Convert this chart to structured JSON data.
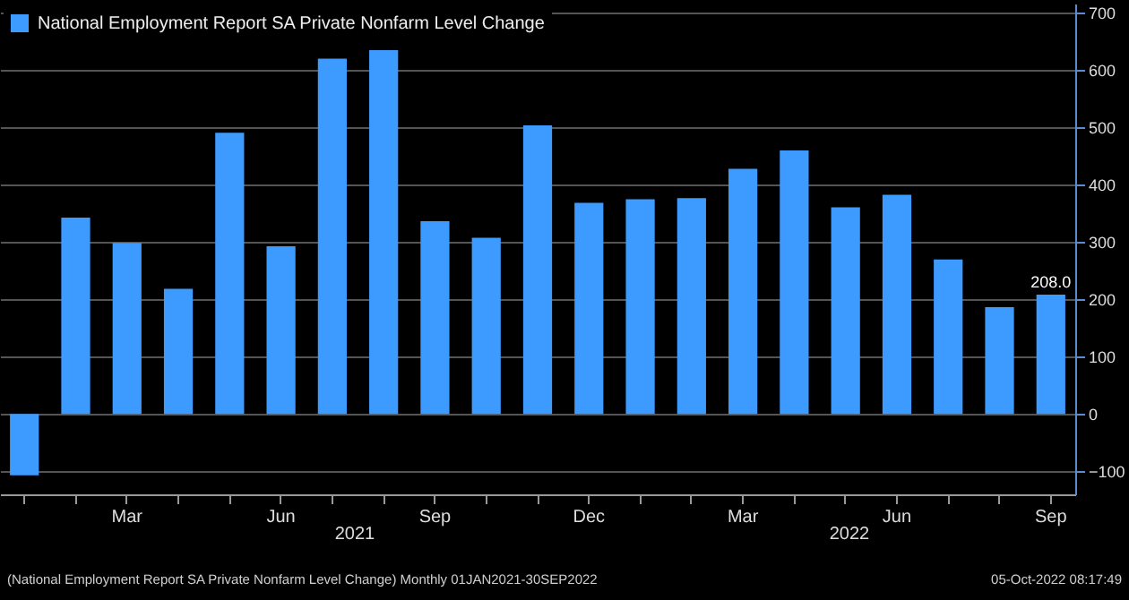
{
  "chart_data": {
    "type": "bar",
    "categories": [
      null,
      null,
      "Mar",
      null,
      null,
      "Jun",
      null,
      null,
      "Sep",
      null,
      null,
      "Dec",
      null,
      null,
      "Mar",
      null,
      null,
      "Jun",
      null,
      null,
      "Sep"
    ],
    "series": [
      {
        "name": "National Employment Report SA Private Nonfarm Level Change",
        "color": "#3d9bff",
        "values": [
          -107,
          342,
          298,
          218,
          490,
          292,
          619,
          634,
          336,
          307,
          503,
          368,
          374,
          376,
          427,
          459,
          360,
          382,
          269,
          186,
          208
        ],
        "value_labels": [
          null,
          null,
          null,
          null,
          null,
          null,
          null,
          null,
          null,
          null,
          null,
          null,
          null,
          null,
          null,
          null,
          null,
          null,
          null,
          null,
          "208.0"
        ]
      }
    ],
    "ylim": [
      -140,
      715
    ],
    "yticks": [
      -100,
      0,
      100,
      200,
      300,
      400,
      500,
      600,
      700
    ],
    "grid": "y",
    "legend": "top left",
    "annotations": [
      "2021",
      "2022",
      "(National Employment Report SA Private Nonfarm Level Change)  Monthly 01JAN2021-30SEP2022",
      "05-Oct-2022 08:17:49"
    ]
  }
}
